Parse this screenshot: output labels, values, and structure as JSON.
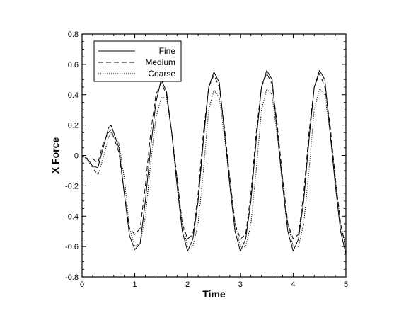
{
  "chart_data": {
    "type": "line",
    "title": "",
    "xlabel": "Time",
    "ylabel": "X Force",
    "xlim": [
      0,
      5
    ],
    "ylim": [
      -0.8,
      0.8
    ],
    "x_ticks": [
      0,
      1,
      2,
      3,
      4,
      5
    ],
    "y_ticks": [
      -0.8,
      -0.6,
      -0.4,
      -0.2,
      0,
      0.2,
      0.4,
      0.6,
      0.8
    ],
    "x_tick_labels": [
      "0",
      "1",
      "2",
      "3",
      "4",
      "5"
    ],
    "y_tick_labels": [
      "-0.8",
      "-0.6",
      "-0.4",
      "-0.2",
      "0",
      "0.2",
      "0.4",
      "0.6",
      "0.8"
    ],
    "grid": false,
    "legend_position": "top-left",
    "series": [
      {
        "name": "Fine",
        "style": "solid",
        "color": "#000000",
        "x": [
          0,
          0.1,
          0.2,
          0.3,
          0.4,
          0.5,
          0.55,
          0.6,
          0.7,
          0.8,
          0.9,
          1.0,
          1.1,
          1.2,
          1.3,
          1.4,
          1.5,
          1.6,
          1.7,
          1.8,
          1.9,
          2.0,
          2.1,
          2.2,
          2.3,
          2.4,
          2.5,
          2.6,
          2.7,
          2.8,
          2.9,
          3.0,
          3.1,
          3.2,
          3.3,
          3.4,
          3.5,
          3.6,
          3.7,
          3.8,
          3.9,
          4.0,
          4.1,
          4.2,
          4.3,
          4.4,
          4.5,
          4.6,
          4.7,
          4.8,
          4.9,
          5.0
        ],
        "values": [
          0.0,
          -0.02,
          -0.07,
          -0.08,
          0.05,
          0.18,
          0.2,
          0.15,
          0.05,
          -0.25,
          -0.53,
          -0.62,
          -0.58,
          -0.3,
          0.05,
          0.35,
          0.5,
          0.42,
          0.15,
          -0.2,
          -0.5,
          -0.63,
          -0.55,
          -0.3,
          0.1,
          0.45,
          0.55,
          0.48,
          0.15,
          -0.2,
          -0.5,
          -0.63,
          -0.55,
          -0.3,
          0.1,
          0.45,
          0.56,
          0.5,
          0.15,
          -0.2,
          -0.5,
          -0.63,
          -0.55,
          -0.3,
          0.1,
          0.45,
          0.56,
          0.5,
          0.15,
          -0.2,
          -0.5,
          -0.65
        ]
      },
      {
        "name": "Medium",
        "style": "dashed",
        "color": "#000000",
        "x": [
          0.2,
          0.3,
          0.4,
          0.5,
          0.55,
          0.6,
          0.7,
          0.8,
          0.9,
          1.0,
          1.1,
          1.2,
          1.3,
          1.4,
          1.5,
          1.6,
          1.7,
          1.8,
          1.9,
          2.0,
          2.1,
          2.2,
          2.3,
          2.4,
          2.5,
          2.6,
          2.7,
          2.8,
          2.9,
          3.0,
          3.1,
          3.2,
          3.3,
          3.4,
          3.5,
          3.6,
          3.7,
          3.8,
          3.9,
          4.0,
          4.1,
          4.2,
          4.3,
          4.4,
          4.5,
          4.6,
          4.7,
          4.8,
          4.9,
          5.0
        ],
        "values": [
          -0.02,
          -0.05,
          0.08,
          0.15,
          0.17,
          0.12,
          0.02,
          -0.25,
          -0.48,
          -0.52,
          -0.48,
          -0.2,
          0.15,
          0.4,
          0.48,
          0.4,
          0.15,
          -0.15,
          -0.45,
          -0.55,
          -0.52,
          -0.25,
          0.15,
          0.45,
          0.53,
          0.45,
          0.18,
          -0.15,
          -0.45,
          -0.55,
          -0.52,
          -0.25,
          0.15,
          0.45,
          0.54,
          0.47,
          0.2,
          -0.15,
          -0.45,
          -0.55,
          -0.52,
          -0.25,
          0.15,
          0.45,
          0.54,
          0.45,
          0.2,
          -0.15,
          -0.45,
          -0.62
        ]
      },
      {
        "name": "Coarse",
        "style": "dotted",
        "color": "#000000",
        "x": [
          0,
          0.1,
          0.2,
          0.3,
          0.4,
          0.5,
          0.55,
          0.6,
          0.7,
          0.8,
          0.9,
          1.0,
          1.1,
          1.2,
          1.3,
          1.4,
          1.5,
          1.6,
          1.7,
          1.8,
          1.9,
          2.0,
          2.1,
          2.2,
          2.3,
          2.4,
          2.5,
          2.6,
          2.7,
          2.8,
          2.9,
          3.0,
          3.1,
          3.2,
          3.3,
          3.4,
          3.5,
          3.6,
          3.7,
          3.8,
          3.9,
          4.0,
          4.1,
          4.2,
          4.3,
          4.4,
          4.5,
          4.6,
          4.7,
          4.8,
          4.9,
          5.0
        ],
        "values": [
          0.0,
          -0.03,
          -0.08,
          -0.13,
          -0.02,
          0.12,
          0.15,
          0.12,
          0.08,
          -0.15,
          -0.48,
          -0.6,
          -0.58,
          -0.4,
          -0.05,
          0.25,
          0.38,
          0.38,
          0.15,
          -0.15,
          -0.45,
          -0.6,
          -0.6,
          -0.45,
          -0.1,
          0.3,
          0.43,
          0.38,
          0.12,
          -0.15,
          -0.45,
          -0.6,
          -0.6,
          -0.45,
          -0.1,
          0.3,
          0.44,
          0.4,
          0.12,
          -0.15,
          -0.45,
          -0.6,
          -0.6,
          -0.45,
          -0.1,
          0.3,
          0.44,
          0.4,
          0.15,
          -0.15,
          -0.45,
          -0.6
        ]
      }
    ]
  }
}
